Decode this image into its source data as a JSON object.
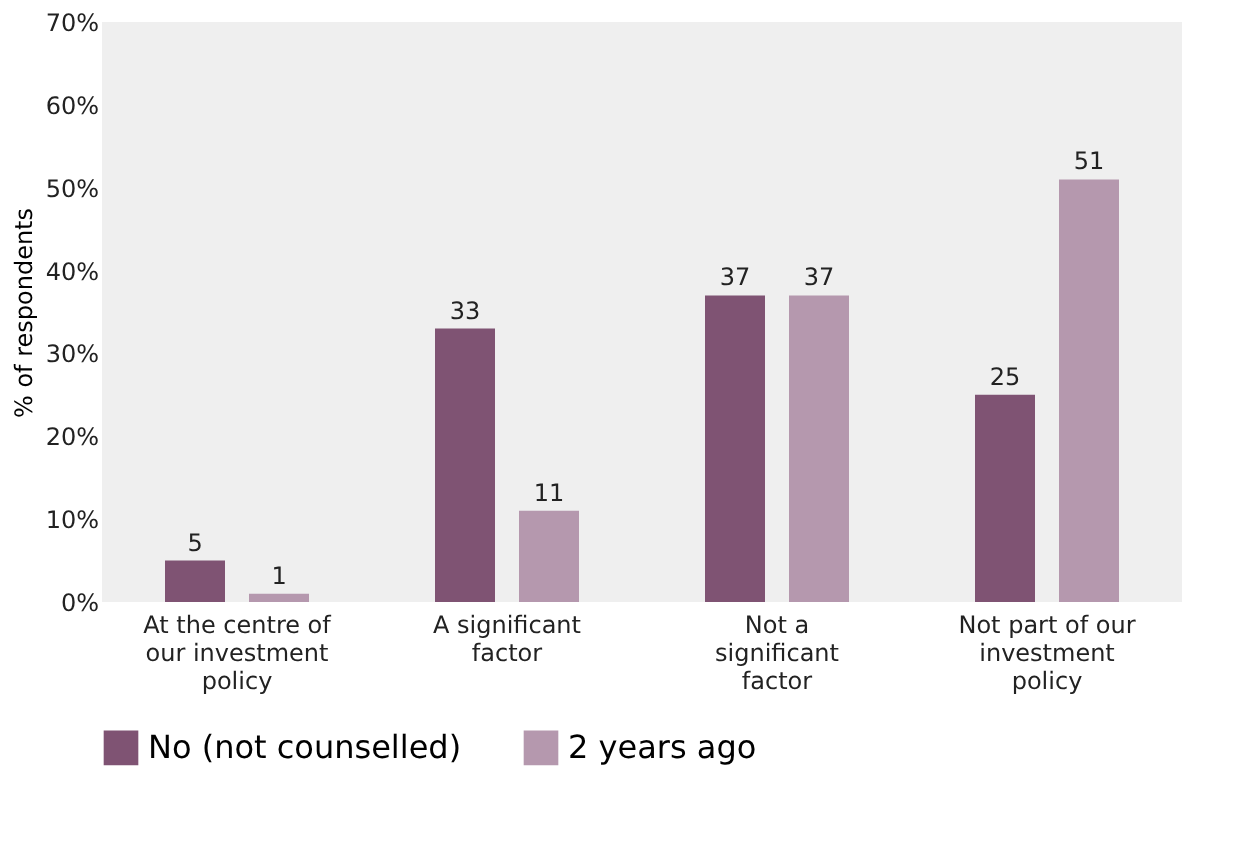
{
  "chart_data": {
    "type": "bar",
    "ylabel": "% of respondents",
    "categories": [
      "At the centre of our investment policy",
      "A significant factor",
      "Not a significant factor",
      "Not part of our investment policy"
    ],
    "series": [
      {
        "name": "No (not counselled)",
        "color": "#7f5373",
        "values": [
          5,
          33,
          37,
          25
        ]
      },
      {
        "name": "2 years ago",
        "color": "#b598ae",
        "values": [
          1,
          11,
          37,
          51
        ]
      }
    ],
    "ylim": [
      0,
      70
    ],
    "yticks": [
      {
        "value": 0,
        "label": "0%"
      },
      {
        "value": 10,
        "label": "10%"
      },
      {
        "value": 20,
        "label": "20%"
      },
      {
        "value": 30,
        "label": "30%"
      },
      {
        "value": 40,
        "label": "40%"
      },
      {
        "value": 50,
        "label": "50%"
      },
      {
        "value": 60,
        "label": "60%"
      },
      {
        "value": 70,
        "label": "70%"
      }
    ],
    "data_labels": true,
    "grid": false,
    "legend": "bottom"
  }
}
